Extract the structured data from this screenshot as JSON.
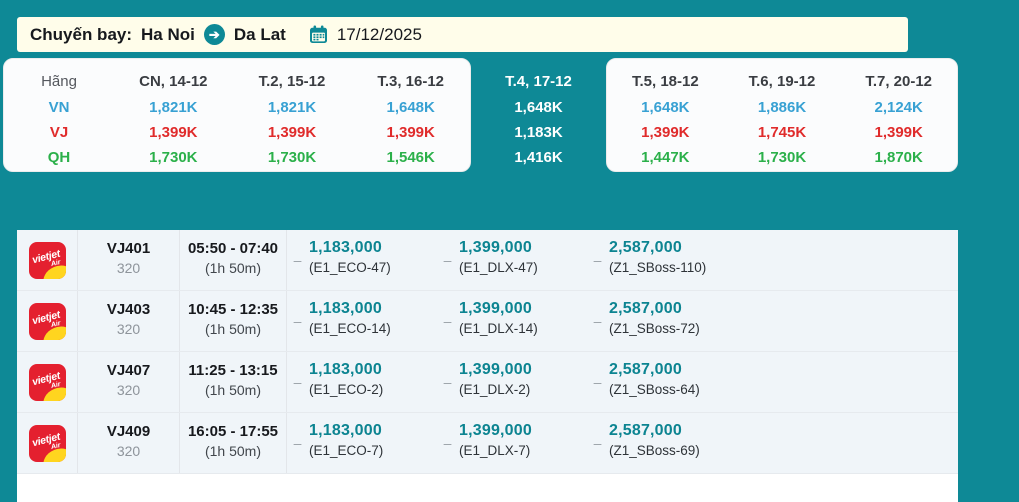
{
  "header": {
    "route_label": "Chuyến bay:",
    "origin": "Ha Noi",
    "destination": "Da Lat",
    "date": "17/12/2025"
  },
  "calendar": {
    "airline_header": "Hãng",
    "days": [
      "CN, 14-12",
      "T.2, 15-12",
      "T.3, 16-12",
      "T.4, 17-12",
      "T.5, 18-12",
      "T.6, 19-12",
      "T.7, 20-12"
    ],
    "selected_day_index": 3,
    "airlines": [
      {
        "code": "VN",
        "color": "#38a1d3",
        "prices": [
          "1,821K",
          "1,821K",
          "1,648K",
          "1,648K",
          "1,648K",
          "1,886K",
          "2,124K"
        ]
      },
      {
        "code": "VJ",
        "color": "#e02b2b",
        "prices": [
          "1,399K",
          "1,399K",
          "1,399K",
          "1,183K",
          "1,399K",
          "1,745K",
          "1,399K"
        ]
      },
      {
        "code": "QH",
        "color": "#2bb04a",
        "prices": [
          "1,730K",
          "1,730K",
          "1,546K",
          "1,416K",
          "1,447K",
          "1,730K",
          "1,870K"
        ]
      }
    ]
  },
  "flight_list": {
    "airline_name": "VietJet Air",
    "logo_text": "vietjet",
    "logo_sub": "Air",
    "fare_dash": "–",
    "flights": [
      {
        "flight_no": "VJ401",
        "aircraft": "320",
        "time": "05:50 - 07:40",
        "duration": "(1h 50m)",
        "fares": [
          {
            "price": "1,183,000",
            "fare_class": "(E1_ECO-47)"
          },
          {
            "price": "1,399,000",
            "fare_class": "(E1_DLX-47)"
          },
          {
            "price": "2,587,000",
            "fare_class": "(Z1_SBoss-110)"
          }
        ]
      },
      {
        "flight_no": "VJ403",
        "aircraft": "320",
        "time": "10:45 - 12:35",
        "duration": "(1h 50m)",
        "fares": [
          {
            "price": "1,183,000",
            "fare_class": "(E1_ECO-14)"
          },
          {
            "price": "1,399,000",
            "fare_class": "(E1_DLX-14)"
          },
          {
            "price": "2,587,000",
            "fare_class": "(Z1_SBoss-72)"
          }
        ]
      },
      {
        "flight_no": "VJ407",
        "aircraft": "320",
        "time": "11:25 - 13:15",
        "duration": "(1h 50m)",
        "fares": [
          {
            "price": "1,183,000",
            "fare_class": "(E1_ECO-2)"
          },
          {
            "price": "1,399,000",
            "fare_class": "(E1_DLX-2)"
          },
          {
            "price": "2,587,000",
            "fare_class": "(Z1_SBoss-64)"
          }
        ]
      },
      {
        "flight_no": "VJ409",
        "aircraft": "320",
        "time": "16:05 - 17:55",
        "duration": "(1h 50m)",
        "fares": [
          {
            "price": "1,183,000",
            "fare_class": "(E1_ECO-7)"
          },
          {
            "price": "1,399,000",
            "fare_class": "(E1_DLX-7)"
          },
          {
            "price": "2,587,000",
            "fare_class": "(Z1_SBoss-69)"
          }
        ]
      }
    ]
  },
  "colors": {
    "page_teal": "#0e8996",
    "summary_cream": "#fffdea",
    "price_teal": "#0c8491",
    "row_bg": "#f0f5f9",
    "logo_red": "#e4202f",
    "logo_yellow": "#ffd51f"
  }
}
